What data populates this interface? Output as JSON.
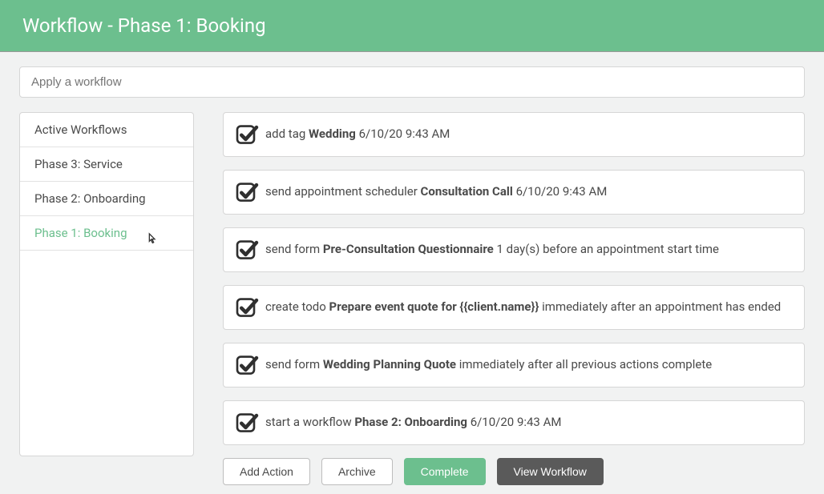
{
  "colors": {
    "accent": "#6cbf8e",
    "header_text": "#ffffff",
    "body_bg": "#f1f2f2",
    "border": "#d6d6d6",
    "text": "#4a4a4a",
    "placeholder": "#8a8a8a",
    "btn_dark": "#5a5a5a"
  },
  "header": {
    "title": "Workflow - Phase 1: Booking"
  },
  "workflow_select": {
    "placeholder": "Apply a workflow"
  },
  "sidebar": {
    "items": [
      {
        "label": "Active Workflows",
        "active": false
      },
      {
        "label": "Phase 3: Service",
        "active": false
      },
      {
        "label": "Phase 2: Onboarding",
        "active": false
      },
      {
        "label": "Phase 1: Booking",
        "active": true
      }
    ]
  },
  "actions": [
    {
      "prefix": "add tag ",
      "bold": "Wedding",
      "suffix": " 6/10/20 9:43 AM"
    },
    {
      "prefix": "send appointment scheduler ",
      "bold": "Consultation Call",
      "suffix": " 6/10/20 9:43 AM"
    },
    {
      "prefix": "send form ",
      "bold": "Pre-Consultation Questionnaire",
      "suffix": " 1 day(s) before an appointment start time"
    },
    {
      "prefix": "create todo ",
      "bold": "Prepare event quote for {{client.name}}",
      "suffix": " immediately after an appointment has ended"
    },
    {
      "prefix": "send form ",
      "bold": "Wedding Planning Quote",
      "suffix": " immediately after all previous actions complete"
    },
    {
      "prefix": "start a workflow ",
      "bold": "Phase 2: Onboarding",
      "suffix": " 6/10/20 9:43 AM"
    }
  ],
  "buttons": {
    "add_action": "Add Action",
    "archive": "Archive",
    "complete": "Complete",
    "view_workflow": "View Workflow"
  }
}
